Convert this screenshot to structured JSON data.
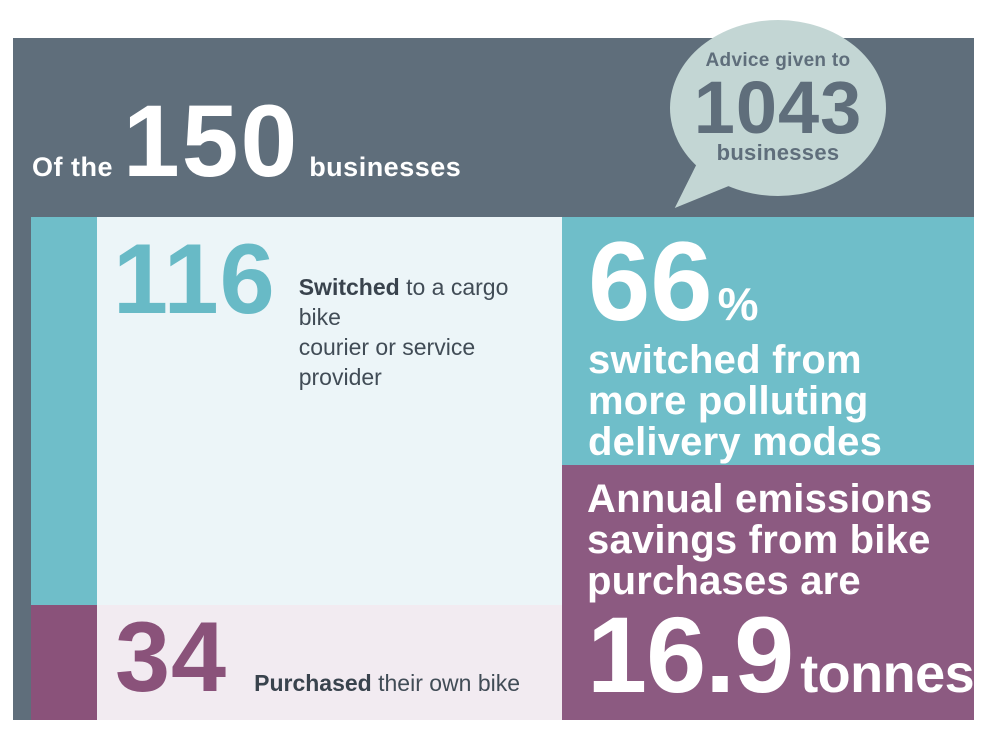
{
  "colors": {
    "background_slate": "#5f6e7b",
    "teal": "#6fbec9",
    "teal_number": "#68bac6",
    "purple_bar": "#8a527a",
    "purple_box": "#8c5a81",
    "light_blue_panel": "#ecf5f8",
    "light_pink_panel": "#f2ebf1",
    "bubble": "#c3d6d4",
    "dark_text": "#414c56",
    "white": "#ffffff"
  },
  "header": {
    "prefix": "Of the",
    "total": "150",
    "suffix": "businesses"
  },
  "bubble": {
    "intro": "Advice given to",
    "value": "1043",
    "label": "businesses"
  },
  "switched": {
    "value": "116",
    "keyword": "Switched",
    "rest": " to a cargo bike\ncourier or service provider"
  },
  "purchased": {
    "value": "34",
    "keyword": "Purchased",
    "rest": " their own bike"
  },
  "mode_shift": {
    "value": "66",
    "percent": "%",
    "text": "switched from\nmore polluting\ndelivery modes"
  },
  "emissions": {
    "intro": "Annual emissions\nsavings from bike\npurchases are",
    "value": "16.9",
    "unit": "tonnes"
  },
  "chart_data": {
    "type": "bar",
    "title": "Of the 150 businesses",
    "categories": [
      "Switched to a cargo bike courier or service provider",
      "Purchased their own bike"
    ],
    "values": [
      116,
      34
    ],
    "total_businesses": 150,
    "advice_given_to_businesses": 1043,
    "switched_from_more_polluting_delivery_modes_percent": 66,
    "annual_emissions_savings_from_bike_purchases_tonnes": 16.9,
    "orientation": "vertical-stacked",
    "grid": false,
    "legend_position": "none"
  }
}
